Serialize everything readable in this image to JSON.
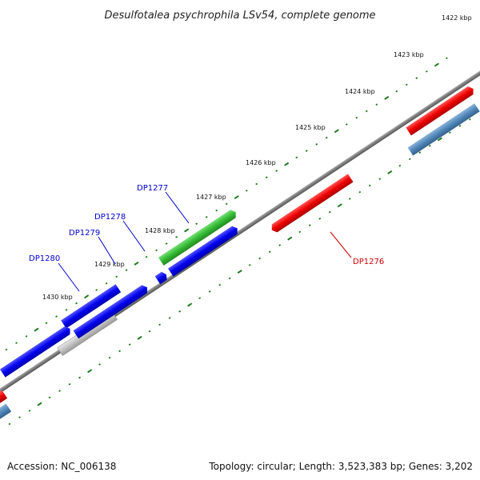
{
  "title": "Desulfotalea psychrophila LSv54, complete genome",
  "footer": {
    "accession": "Accession: NC_006138",
    "summary": "Topology: circular; Length: 3,523,383 bp; Genes: 3,202"
  },
  "colors": {
    "backbone": "#808080",
    "tick": "#1f7a1f",
    "gene_blue": "#0000ee",
    "gene_red": "#ee0000",
    "gene_green": "#33bb33",
    "gene_grey": "#bbbbbb",
    "gene_steel": "#4f86b8",
    "label_blue": "#0000cc",
    "label_red": "#cc0000"
  },
  "ticks": [
    {
      "label": "1422 kbp",
      "kbp": 1422
    },
    {
      "label": "1423 kbp",
      "kbp": 1423
    },
    {
      "label": "1424 kbp",
      "kbp": 1424
    },
    {
      "label": "1425 kbp",
      "kbp": 1425
    },
    {
      "label": "1426 kbp",
      "kbp": 1426
    },
    {
      "label": "1427 kbp",
      "kbp": 1427
    },
    {
      "label": "1428 kbp",
      "kbp": 1428
    },
    {
      "label": "1429 kbp",
      "kbp": 1429
    },
    {
      "label": "1430 kbp",
      "kbp": 1430
    }
  ],
  "labels": [
    {
      "text": "DP1277",
      "color": "blue"
    },
    {
      "text": "DP1278",
      "color": "blue"
    },
    {
      "text": "DP1279",
      "color": "blue"
    },
    {
      "text": "DP1280",
      "color": "blue"
    },
    {
      "text": "DP1276",
      "color": "red"
    }
  ]
}
